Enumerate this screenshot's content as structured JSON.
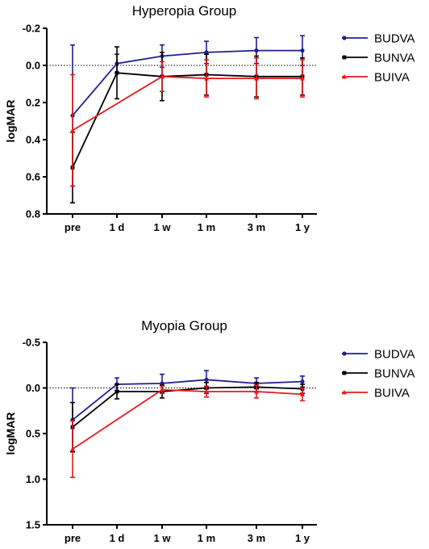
{
  "chart_data": [
    {
      "type": "line",
      "title": "Hyperopia Group",
      "ylabel": "logMAR",
      "xlabel": "",
      "categories": [
        "pre",
        "1 d",
        "1 w",
        "1 m",
        "3 m",
        "1 y"
      ],
      "ylim": [
        -0.2,
        0.8
      ],
      "yticks": [
        -0.2,
        0.0,
        0.2,
        0.4,
        0.6,
        0.8
      ],
      "ytick_labels": [
        "-0.2",
        "0.0",
        "0.2",
        "0.4",
        "0.6",
        "0.8"
      ],
      "y_inverted": true,
      "reference_line": 0.0,
      "legend_position": "right",
      "series": [
        {
          "name": "BUDVA",
          "color": "#1f1f8f",
          "marker": "circle",
          "values": [
            0.27,
            -0.01,
            -0.05,
            -0.07,
            -0.08,
            -0.08
          ],
          "errors": [
            0.38,
            0.05,
            0.06,
            0.06,
            0.07,
            0.08
          ]
        },
        {
          "name": "BUNVA",
          "color": "#000000",
          "marker": "square",
          "values": [
            0.55,
            0.04,
            0.06,
            0.05,
            0.06,
            0.06
          ],
          "errors": [
            0.19,
            0.14,
            0.13,
            0.11,
            0.11,
            0.1
          ]
        },
        {
          "name": "BUIVA",
          "color": "#e41a1c",
          "marker": "triangle",
          "values": [
            0.35,
            null,
            0.06,
            0.07,
            0.07,
            0.07
          ],
          "errors": [
            0.3,
            null,
            0.08,
            0.1,
            0.11,
            0.1
          ]
        }
      ]
    },
    {
      "type": "line",
      "title": "Myopia Group",
      "ylabel": "logMAR",
      "xlabel": "",
      "categories": [
        "pre",
        "1 d",
        "1 w",
        "1 m",
        "3 m",
        "1 y"
      ],
      "ylim": [
        -0.5,
        1.5
      ],
      "yticks": [
        -0.5,
        0.0,
        0.5,
        1.0,
        1.5
      ],
      "ytick_labels": [
        "-0.5",
        "0.0",
        "0.5",
        "1.0",
        "1.5"
      ],
      "y_inverted": true,
      "reference_line": 0.0,
      "legend_position": "right",
      "series": [
        {
          "name": "BUDVA",
          "color": "#1f1f8f",
          "marker": "circle",
          "values": [
            0.35,
            -0.04,
            -0.05,
            -0.09,
            -0.05,
            -0.07
          ],
          "errors": [
            0.35,
            0.07,
            0.1,
            0.1,
            0.06,
            0.06
          ]
        },
        {
          "name": "BUNVA",
          "color": "#000000",
          "marker": "square",
          "values": [
            0.43,
            0.04,
            0.04,
            0.0,
            -0.01,
            0.01
          ],
          "errors": [
            0.27,
            0.08,
            0.07,
            0.06,
            0.05,
            0.05
          ]
        },
        {
          "name": "BUIVA",
          "color": "#e41a1c",
          "marker": "triangle",
          "values": [
            0.67,
            null,
            0.02,
            0.04,
            0.04,
            0.07
          ],
          "errors": [
            0.31,
            null,
            0.04,
            0.06,
            0.07,
            0.07
          ]
        }
      ]
    }
  ]
}
